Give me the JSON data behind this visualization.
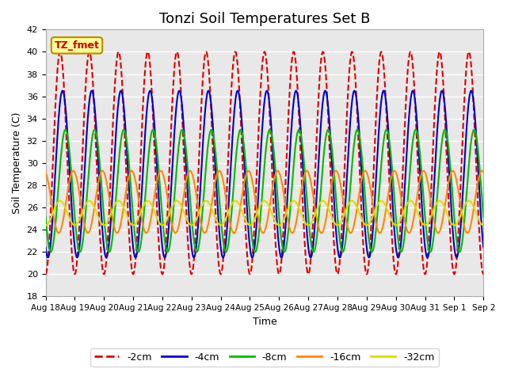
{
  "title": "Tonzi Soil Temperatures Set B",
  "xlabel": "Time",
  "ylabel": "Soil Temperature (C)",
  "ylim": [
    18,
    42
  ],
  "yticks": [
    18,
    20,
    22,
    24,
    26,
    28,
    30,
    32,
    34,
    36,
    38,
    40,
    42
  ],
  "xlabels": [
    "Aug 18",
    "Aug 19",
    "Aug 20",
    "Aug 21",
    "Aug 22",
    "Aug 23",
    "Aug 24",
    "Aug 25",
    "Aug 26",
    "Aug 27",
    "Aug 28",
    "Aug 29",
    "Aug 30",
    "Aug 31",
    "Sep 1",
    "Sep 2"
  ],
  "legend_label": "TZ_fmet",
  "series_order": [
    "-2cm",
    "-4cm",
    "-8cm",
    "-16cm",
    "-32cm"
  ],
  "series": {
    "-2cm": {
      "color": "#dd0000",
      "linestyle": "--",
      "linewidth": 1.5,
      "mean": 30.0,
      "amplitude": 10.0,
      "phase_lag": 0.0
    },
    "-4cm": {
      "color": "#0000cc",
      "linestyle": "-",
      "linewidth": 1.5,
      "mean": 29.0,
      "amplitude": 7.5,
      "phase_lag": 0.08
    },
    "-8cm": {
      "color": "#00bb00",
      "linestyle": "-",
      "linewidth": 1.5,
      "mean": 27.5,
      "amplitude": 5.5,
      "phase_lag": 0.18
    },
    "-16cm": {
      "color": "#ff8800",
      "linestyle": "-",
      "linewidth": 1.5,
      "mean": 26.5,
      "amplitude": 2.8,
      "phase_lag": 0.45
    },
    "-32cm": {
      "color": "#dddd00",
      "linestyle": "-",
      "linewidth": 1.5,
      "mean": 25.5,
      "amplitude": 1.1,
      "phase_lag": 1.0
    }
  },
  "n_points": 3360,
  "days": 15,
  "background_color": "#e8e8e8",
  "figure_background": "#ffffff",
  "grid_color": "#ffffff",
  "title_fontsize": 13
}
